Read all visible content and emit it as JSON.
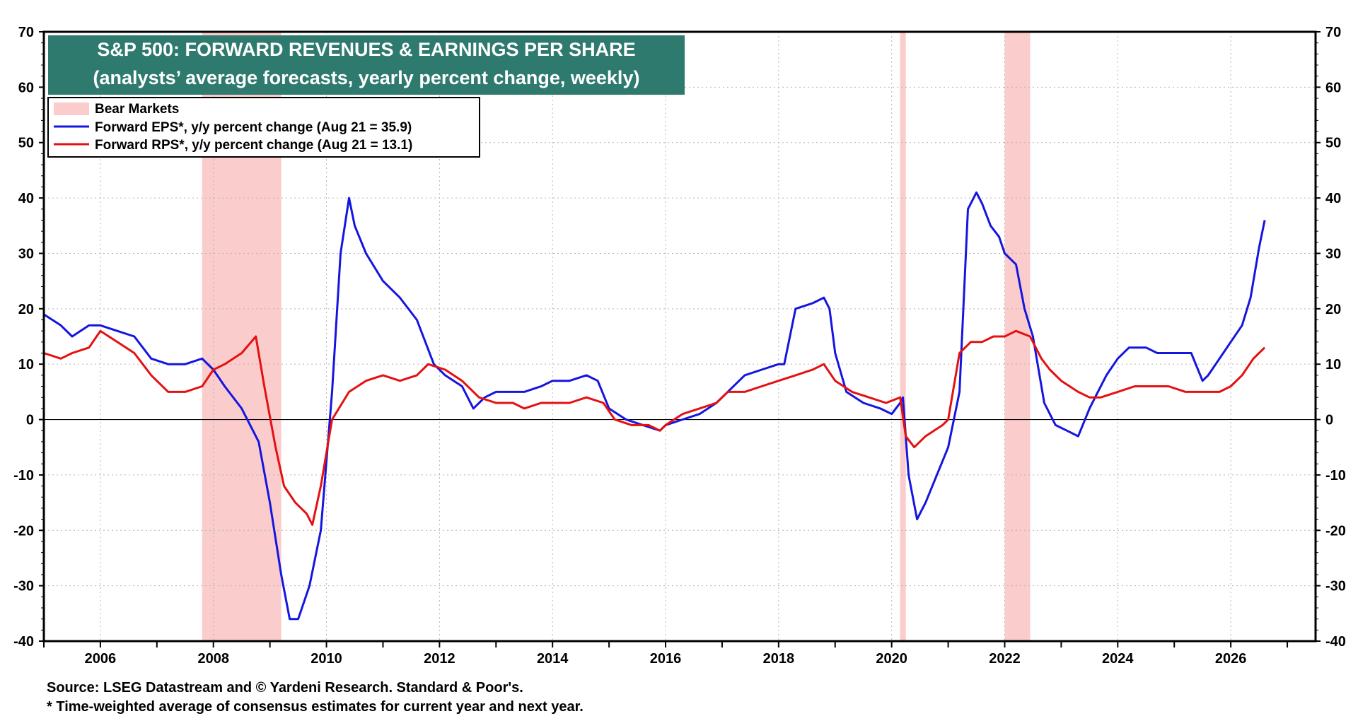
{
  "chart_data": {
    "type": "line",
    "title": "S&P 500: FORWARD REVENUES & EARNINGS PER SHARE",
    "subtitle": "(analysts’ average forecasts, yearly percent change, weekly)",
    "xlabel": "",
    "ylabel": "",
    "xlim": [
      2005,
      2027.5
    ],
    "ylim": [
      -40,
      70
    ],
    "y_ticks": [
      "70",
      "60",
      "50",
      "40",
      "30",
      "20",
      "10",
      "0",
      "-10",
      "-20",
      "-30",
      "-40"
    ],
    "x_ticks": [
      "2006",
      "2008",
      "2010",
      "2012",
      "2014",
      "2016",
      "2018",
      "2020",
      "2022",
      "2024",
      "2026"
    ],
    "grid": true,
    "zero_line": true,
    "legend_position": "top-left",
    "legend": {
      "bear": "Bear Markets",
      "eps": "Forward EPS*, y/y percent change (Aug 21 = 35.9)",
      "rps": "Forward RPS*, y/y percent change (Aug 21 = 13.1)"
    },
    "bear_markets": [
      {
        "start": 2007.8,
        "end": 2009.2
      },
      {
        "start": 2020.15,
        "end": 2020.25
      },
      {
        "start": 2022.0,
        "end": 2022.45
      }
    ],
    "series": [
      {
        "name": "Forward EPS*, y/y percent change",
        "color": "#1515e0",
        "x": [
          2005.0,
          2005.3,
          2005.5,
          2005.8,
          2006.0,
          2006.3,
          2006.6,
          2006.9,
          2007.2,
          2007.5,
          2007.8,
          2008.0,
          2008.2,
          2008.5,
          2008.8,
          2009.0,
          2009.2,
          2009.35,
          2009.5,
          2009.7,
          2009.9,
          2010.1,
          2010.25,
          2010.4,
          2010.5,
          2010.7,
          2011.0,
          2011.3,
          2011.6,
          2011.9,
          2012.1,
          2012.4,
          2012.6,
          2012.8,
          2013.0,
          2013.3,
          2013.5,
          2013.8,
          2014.0,
          2014.3,
          2014.6,
          2014.8,
          2015.0,
          2015.3,
          2015.6,
          2015.9,
          2016.0,
          2016.3,
          2016.6,
          2016.9,
          2017.1,
          2017.4,
          2017.7,
          2018.0,
          2018.1,
          2018.3,
          2018.6,
          2018.8,
          2018.9,
          2019.0,
          2019.2,
          2019.5,
          2019.8,
          2020.0,
          2020.15,
          2020.2,
          2020.3,
          2020.45,
          2020.6,
          2020.8,
          2021.0,
          2021.2,
          2021.35,
          2021.5,
          2021.6,
          2021.75,
          2021.9,
          2022.0,
          2022.2,
          2022.35,
          2022.5,
          2022.7,
          2022.9,
          2023.1,
          2023.3,
          2023.5,
          2023.6,
          2023.8,
          2024.0,
          2024.2,
          2024.5,
          2024.7,
          2025.0,
          2025.3,
          2025.5,
          2025.6,
          2025.8,
          2026.0,
          2026.2,
          2026.35,
          2026.5,
          2026.6
        ],
        "values": [
          19,
          17,
          15,
          17,
          17,
          16,
          15,
          11,
          10,
          10,
          11,
          9,
          6,
          2,
          -4,
          -15,
          -28,
          -36,
          -36,
          -30,
          -20,
          5,
          30,
          40,
          35,
          30,
          25,
          22,
          18,
          10,
          8,
          6,
          2,
          4,
          5,
          5,
          5,
          6,
          7,
          7,
          8,
          7,
          2,
          0,
          -1,
          -2,
          -1,
          0,
          1,
          3,
          5,
          8,
          9,
          10,
          10,
          20,
          21,
          22,
          20,
          12,
          5,
          3,
          2,
          1,
          3,
          4,
          -10,
          -18,
          -15,
          -10,
          -5,
          5,
          38,
          41,
          39,
          35,
          33,
          30,
          28,
          20,
          15,
          3,
          -1,
          -2,
          -3,
          2,
          4,
          8,
          11,
          13,
          13,
          12,
          12,
          12,
          7,
          8,
          11,
          14,
          17,
          22,
          31,
          36
        ]
      },
      {
        "name": "Forward RPS*, y/y percent change",
        "color": "#e51010",
        "x": [
          2005.0,
          2005.3,
          2005.5,
          2005.8,
          2006.0,
          2006.3,
          2006.6,
          2006.9,
          2007.2,
          2007.5,
          2007.8,
          2008.0,
          2008.2,
          2008.5,
          2008.75,
          2008.9,
          2009.1,
          2009.25,
          2009.45,
          2009.65,
          2009.75,
          2009.9,
          2010.1,
          2010.4,
          2010.7,
          2011.0,
          2011.3,
          2011.6,
          2011.8,
          2012.1,
          2012.4,
          2012.7,
          2013.0,
          2013.3,
          2013.5,
          2013.8,
          2014.0,
          2014.3,
          2014.6,
          2014.9,
          2015.1,
          2015.4,
          2015.7,
          2015.9,
          2016.0,
          2016.3,
          2016.6,
          2016.9,
          2017.1,
          2017.4,
          2017.7,
          2018.0,
          2018.3,
          2018.6,
          2018.8,
          2019.0,
          2019.3,
          2019.6,
          2019.9,
          2020.15,
          2020.25,
          2020.4,
          2020.6,
          2020.9,
          2021.0,
          2021.2,
          2021.4,
          2021.6,
          2021.8,
          2022.0,
          2022.2,
          2022.45,
          2022.65,
          2022.8,
          2023.0,
          2023.3,
          2023.5,
          2023.7,
          2024.0,
          2024.3,
          2024.6,
          2024.9,
          2025.2,
          2025.5,
          2025.8,
          2026.0,
          2026.2,
          2026.4,
          2026.6
        ],
        "values": [
          12,
          11,
          12,
          13,
          16,
          14,
          12,
          8,
          5,
          5,
          6,
          9,
          10,
          12,
          15,
          6,
          -5,
          -12,
          -15,
          -17,
          -19,
          -12,
          0,
          5,
          7,
          8,
          7,
          8,
          10,
          9,
          7,
          4,
          3,
          3,
          2,
          3,
          3,
          3,
          4,
          3,
          0,
          -1,
          -1,
          -2,
          -1,
          1,
          2,
          3,
          5,
          5,
          6,
          7,
          8,
          9,
          10,
          7,
          5,
          4,
          3,
          4,
          -3,
          -5,
          -3,
          -1,
          0,
          12,
          14,
          14,
          15,
          15,
          16,
          15,
          11,
          9,
          7,
          5,
          4,
          4,
          5,
          6,
          6,
          6,
          5,
          5,
          5,
          6,
          8,
          11,
          13
        ]
      }
    ]
  },
  "footer": {
    "source": "Source: LSEG Datastream and © Yardeni Research. Standard & Poor's.",
    "note": "* Time-weighted average of consensus estimates for current year and next year."
  }
}
